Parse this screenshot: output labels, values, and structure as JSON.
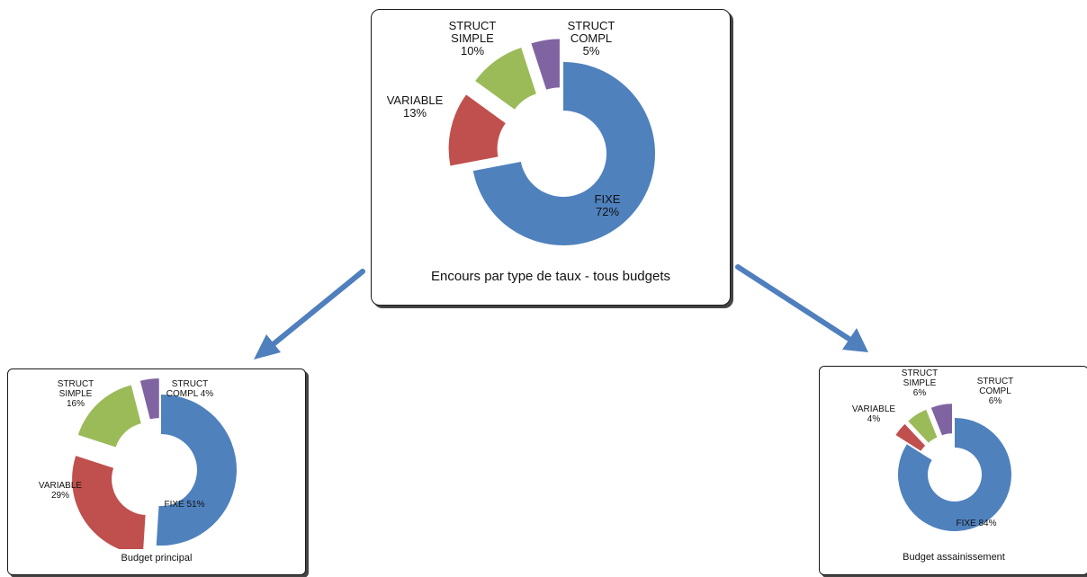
{
  "colors": {
    "fixe": "#4f81bd",
    "variable": "#c0504d",
    "simple": "#9bbb59",
    "compl": "#8064a2",
    "arrow": "#4f7fbd"
  },
  "chart_data": [
    {
      "type": "pie",
      "title": "Encours par type de taux - tous budgets",
      "slices": [
        {
          "name": "FIXE",
          "value": 72,
          "pct": "72%",
          "label": [
            "FIXE",
            "72%"
          ]
        },
        {
          "name": "VARIABLE",
          "value": 13,
          "pct": "13%",
          "label": [
            "VARIABLE",
            "13%"
          ]
        },
        {
          "name": "STRUCT SIMPLE",
          "value": 10,
          "pct": "10%",
          "label": [
            "STRUCT",
            "SIMPLE",
            "10%"
          ]
        },
        {
          "name": "STRUCT COMPL",
          "value": 5,
          "pct": "5%",
          "label": [
            "STRUCT",
            "COMPL",
            "5%"
          ]
        }
      ]
    },
    {
      "type": "pie",
      "title": "Budget principal",
      "slices": [
        {
          "name": "FIXE",
          "value": 51,
          "pct": "51%",
          "label": [
            "FIXE 51%"
          ]
        },
        {
          "name": "VARIABLE",
          "value": 29,
          "pct": "29%",
          "label": [
            "VARIABLE",
            "29%"
          ]
        },
        {
          "name": "STRUCT SIMPLE",
          "value": 16,
          "pct": "16%",
          "label": [
            "STRUCT",
            "SIMPLE",
            "16%"
          ]
        },
        {
          "name": "STRUCT COMPL",
          "value": 4,
          "pct": "4%",
          "label": [
            "STRUCT",
            "COMPL 4%"
          ]
        }
      ]
    },
    {
      "type": "pie",
      "title": "Budget assainissement",
      "slices": [
        {
          "name": "FIXE",
          "value": 84,
          "pct": "84%",
          "label": [
            "FIXE 84%"
          ]
        },
        {
          "name": "VARIABLE",
          "value": 4,
          "pct": "4%",
          "label": [
            "VARIABLE",
            "4%"
          ]
        },
        {
          "name": "STRUCT SIMPLE",
          "value": 6,
          "pct": "6%",
          "label": [
            "STRUCT",
            "SIMPLE",
            "6%"
          ]
        },
        {
          "name": "STRUCT COMPL",
          "value": 6,
          "pct": "6%",
          "label": [
            "STRUCT",
            "COMPL",
            "6%"
          ]
        }
      ]
    }
  ]
}
